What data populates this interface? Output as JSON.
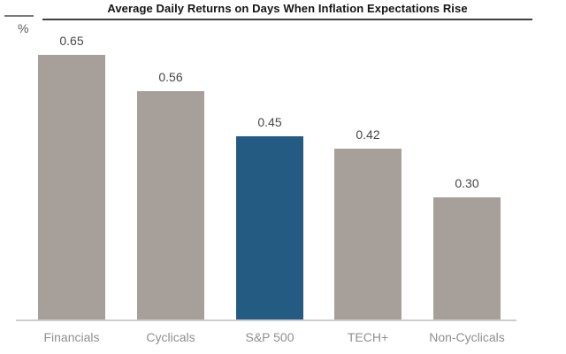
{
  "header": {
    "title": "Average Daily Returns on Days When Inflation Expectations Rise",
    "unit_label": "%"
  },
  "chart_data": {
    "type": "bar",
    "title": "Average Daily Returns on Days When Inflation Expectations Rise",
    "ylabel": "%",
    "xlabel": "",
    "categories": [
      "Financials",
      "Cyclicals",
      "S&P 500",
      "TECH+",
      "Non-Cyclicals"
    ],
    "values": [
      0.65,
      0.56,
      0.45,
      0.42,
      0.3
    ],
    "value_labels": [
      "0.65",
      "0.56",
      "0.45",
      "0.42",
      "0.30"
    ],
    "ylim": [
      0,
      0.7
    ],
    "grid": false,
    "y_axis_ticks": "none",
    "bar_color": "#a79f99",
    "highlight": {
      "category": "S&P 500",
      "index": 2,
      "color": "#235b83"
    },
    "axis_line_color": "#cccccc",
    "category_label_color": "#8f8f8f",
    "value_label_color": "#474747"
  }
}
